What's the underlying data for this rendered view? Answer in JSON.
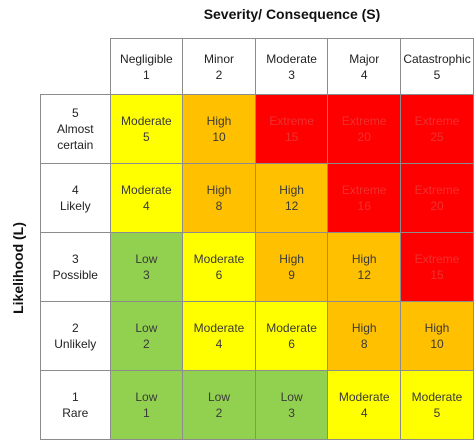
{
  "title": "Severity/ Consequence (S)",
  "ylabel": "Likelihood (L)",
  "severity": [
    {
      "name": "Negligible",
      "num": "1"
    },
    {
      "name": "Minor",
      "num": "2"
    },
    {
      "name": "Moderate",
      "num": "3"
    },
    {
      "name": "Major",
      "num": "4"
    },
    {
      "name": "Catastrophic",
      "num": "5"
    }
  ],
  "likelihood": [
    {
      "num": "5",
      "name1": "Almost",
      "name2": "certain"
    },
    {
      "num": "4",
      "name1": "Likely",
      "name2": ""
    },
    {
      "num": "3",
      "name1": "Possible",
      "name2": ""
    },
    {
      "num": "2",
      "name1": "Unlikely",
      "name2": ""
    },
    {
      "num": "1",
      "name1": "Rare",
      "name2": ""
    }
  ],
  "rows": [
    [
      {
        "label": "Moderate",
        "score": "5",
        "level": "moderate"
      },
      {
        "label": "High",
        "score": "10",
        "level": "high"
      },
      {
        "label": "Extreme",
        "score": "15",
        "level": "extreme"
      },
      {
        "label": "Extreme",
        "score": "20",
        "level": "extreme"
      },
      {
        "label": "Extreme",
        "score": "25",
        "level": "extreme"
      }
    ],
    [
      {
        "label": "Moderate",
        "score": "4",
        "level": "moderate"
      },
      {
        "label": "High",
        "score": "8",
        "level": "high"
      },
      {
        "label": "High",
        "score": "12",
        "level": "high"
      },
      {
        "label": "Extreme",
        "score": "16",
        "level": "extreme"
      },
      {
        "label": "Extreme",
        "score": "20",
        "level": "extreme"
      }
    ],
    [
      {
        "label": "Low",
        "score": "3",
        "level": "low"
      },
      {
        "label": "Moderate",
        "score": "6",
        "level": "moderate"
      },
      {
        "label": "High",
        "score": "9",
        "level": "high"
      },
      {
        "label": "High",
        "score": "12",
        "level": "high"
      },
      {
        "label": "Extreme",
        "score": "15",
        "level": "extreme"
      }
    ],
    [
      {
        "label": "Low",
        "score": "2",
        "level": "low"
      },
      {
        "label": "Moderate",
        "score": "4",
        "level": "moderate"
      },
      {
        "label": "Moderate",
        "score": "6",
        "level": "moderate"
      },
      {
        "label": "High",
        "score": "8",
        "level": "high"
      },
      {
        "label": "High",
        "score": "10",
        "level": "high"
      }
    ],
    [
      {
        "label": "Low",
        "score": "1",
        "level": "low"
      },
      {
        "label": "Low",
        "score": "2",
        "level": "low"
      },
      {
        "label": "Low",
        "score": "3",
        "level": "low"
      },
      {
        "label": "Moderate",
        "score": "4",
        "level": "moderate"
      },
      {
        "label": "Moderate",
        "score": "5",
        "level": "moderate"
      }
    ]
  ],
  "colors": {
    "low": "#92d050",
    "moderate": "#ffff00",
    "high": "#ffc000",
    "extreme": "#ff0000"
  }
}
